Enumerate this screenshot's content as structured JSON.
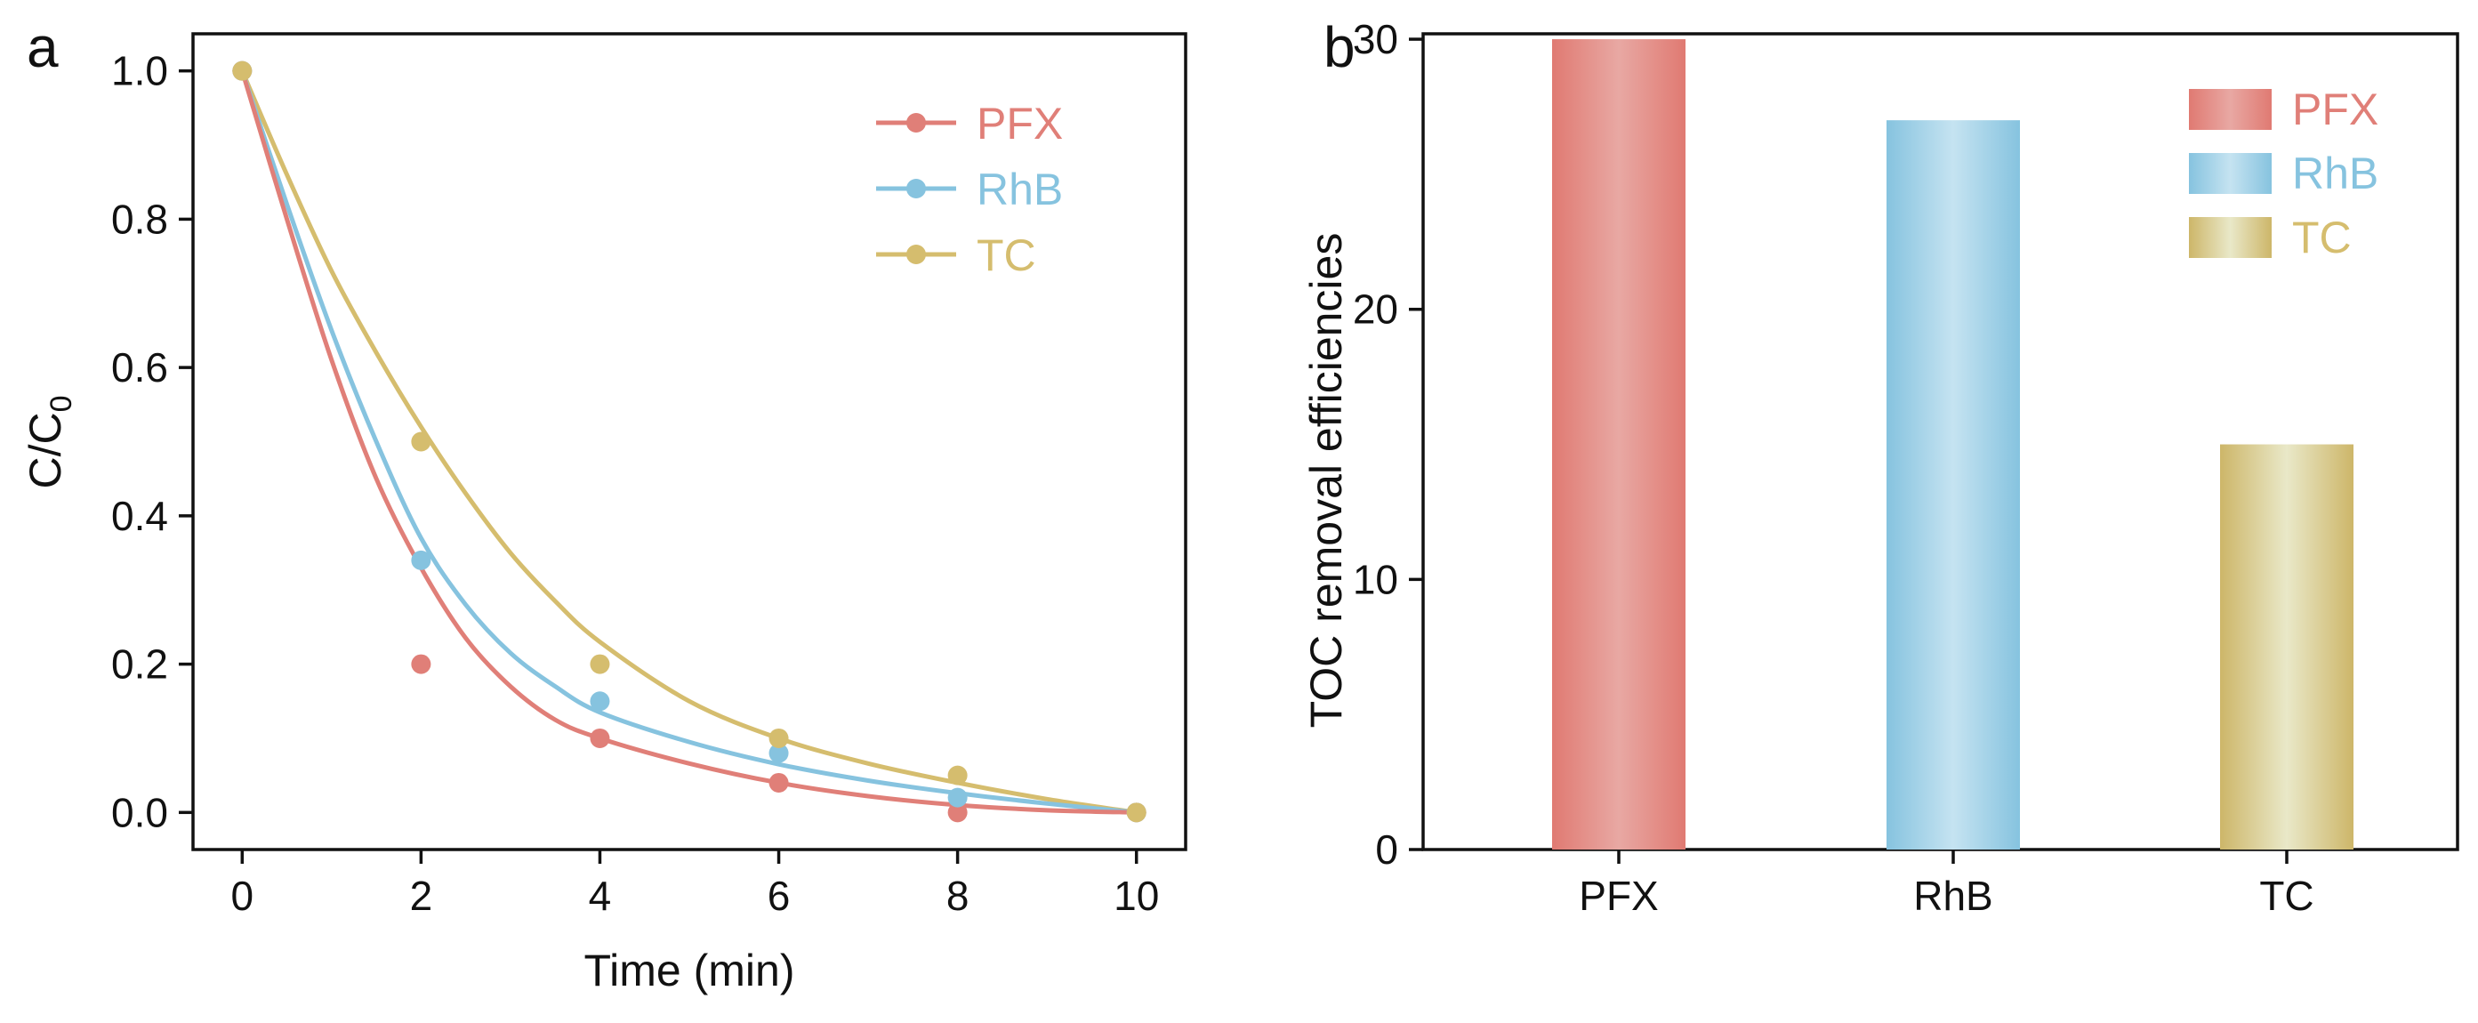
{
  "colors": {
    "PFX": "#e07f78",
    "RhB": "#86c3df",
    "TC": "#d5bd6e",
    "PFX_light": "#e8a8a3",
    "RhB_light": "#c5e3f1",
    "TC_light": "#e9e8c8",
    "axis": "#111111"
  },
  "chart_data": [
    {
      "panel": "a",
      "type": "scatter",
      "title": "",
      "xlabel": "Time (min)",
      "ylabel_main": "C/C",
      "ylabel_sub": "0",
      "xlim": [
        -0.55,
        10.55
      ],
      "ylim": [
        -0.05,
        1.05
      ],
      "xticks": [
        "0",
        "2",
        "4",
        "6",
        "8",
        "10"
      ],
      "yticks": [
        "0.0",
        "0.2",
        "0.4",
        "0.6",
        "0.8",
        "1.0"
      ],
      "legend_position": "top-right",
      "series": [
        {
          "name": "PFX",
          "color_key": "PFX",
          "x": [
            0,
            2,
            4,
            6,
            8,
            10
          ],
          "y": [
            1.0,
            0.2,
            0.1,
            0.04,
            0.0,
            0.0
          ],
          "fit_x": [
            0,
            0.5,
            1,
            1.5,
            2,
            2.5,
            3,
            3.5,
            4,
            5,
            6,
            7,
            8,
            9,
            10
          ],
          "fit_y": [
            1.0,
            0.8,
            0.61,
            0.45,
            0.33,
            0.235,
            0.17,
            0.125,
            0.1,
            0.066,
            0.04,
            0.022,
            0.01,
            0.003,
            0.0
          ]
        },
        {
          "name": "RhB",
          "color_key": "RhB",
          "x": [
            0,
            2,
            4,
            6,
            8,
            10
          ],
          "y": [
            1.0,
            0.34,
            0.15,
            0.08,
            0.02,
            0.0
          ],
          "fit_x": [
            0,
            0.5,
            1,
            1.5,
            2,
            2.5,
            3,
            3.5,
            4,
            5,
            6,
            7,
            8,
            9,
            10
          ],
          "fit_y": [
            1.0,
            0.82,
            0.65,
            0.5,
            0.37,
            0.28,
            0.215,
            0.17,
            0.135,
            0.095,
            0.065,
            0.043,
            0.026,
            0.012,
            0.0
          ]
        },
        {
          "name": "TC",
          "color_key": "TC",
          "x": [
            0,
            2,
            4,
            6,
            8,
            10
          ],
          "y": [
            1.0,
            0.5,
            0.2,
            0.1,
            0.05,
            0.0
          ],
          "fit_x": [
            0,
            0.5,
            1,
            1.5,
            2,
            2.5,
            3,
            3.5,
            4,
            5,
            6,
            7,
            8,
            9,
            10
          ],
          "fit_y": [
            1.0,
            0.86,
            0.73,
            0.62,
            0.52,
            0.43,
            0.35,
            0.285,
            0.23,
            0.15,
            0.1,
            0.066,
            0.04,
            0.018,
            0.0
          ]
        }
      ]
    },
    {
      "panel": "b",
      "type": "bar",
      "title": "",
      "xlabel": "",
      "ylabel": "TOC removal efficiencies",
      "categories": [
        "PFX",
        "RhB",
        "TC"
      ],
      "values": [
        30,
        27,
        15
      ],
      "ylim": [
        0,
        30.2
      ],
      "yticks": [
        "0",
        "10",
        "20",
        "30"
      ],
      "legend_position": "top-right",
      "legend": [
        "PFX",
        "RhB",
        "TC"
      ]
    }
  ]
}
